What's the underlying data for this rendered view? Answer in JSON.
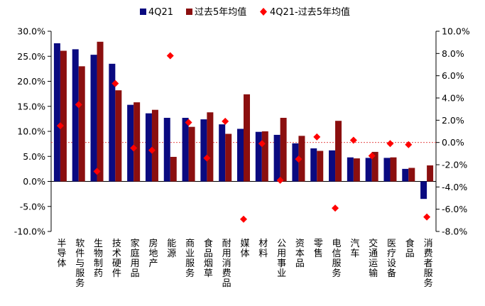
{
  "chart_data": {
    "type": "bar",
    "title": "",
    "xlabel": "",
    "ylabel": "",
    "y_left_range": [
      -10,
      30
    ],
    "y_left_ticks": [
      "-10.0%",
      "-5.0%",
      "0.0%",
      "5.0%",
      "10.0%",
      "15.0%",
      "20.0%",
      "25.0%",
      "30.0%"
    ],
    "y_right_range": [
      -8,
      10
    ],
    "y_right_ticks": [
      "-8.0%",
      "-6.0%",
      "-4.0%",
      "-2.0%",
      "0.0%",
      "2.0%",
      "4.0%",
      "6.0%",
      "8.0%",
      "10.0%"
    ],
    "legend_position": "top",
    "grid": false,
    "categories": [
      "半导体",
      "软件与服务",
      "生物制药",
      "技术硬件",
      "家庭用品",
      "房地产",
      "能源",
      "商业服务",
      "食品烟草",
      "耐用消费品",
      "媒体",
      "材料",
      "公用事业",
      "资本品",
      "零售",
      "电信服务",
      "汽车",
      "交通运输",
      "医疗设备",
      "食品",
      "消费者服务"
    ],
    "series": [
      {
        "name": "4Q21",
        "kind": "bar",
        "axis": "left",
        "color": "#0a0a80",
        "values": [
          27.6,
          26.4,
          25.3,
          23.5,
          15.3,
          13.6,
          12.7,
          12.7,
          12.4,
          11.4,
          10.5,
          9.9,
          9.3,
          7.6,
          6.6,
          6.2,
          4.8,
          4.7,
          4.7,
          2.5,
          -3.5
        ]
      },
      {
        "name": "过去5年均值",
        "kind": "bar",
        "axis": "left",
        "color": "#8b0f0f",
        "values": [
          26.1,
          23.0,
          27.9,
          18.2,
          15.8,
          14.3,
          4.9,
          10.9,
          13.8,
          9.5,
          17.4,
          10.0,
          12.7,
          9.1,
          6.1,
          12.1,
          4.6,
          5.9,
          4.8,
          2.7,
          3.2
        ]
      },
      {
        "name": "4Q21-过去5年均值",
        "kind": "scatter",
        "axis": "right",
        "color": "#ff0000",
        "values": [
          1.5,
          3.4,
          -2.6,
          5.3,
          -0.5,
          -0.7,
          7.8,
          1.8,
          -1.4,
          1.9,
          -6.9,
          -0.1,
          -3.4,
          -1.5,
          0.5,
          -5.9,
          0.2,
          -1.2,
          -0.1,
          -0.2,
          -6.7
        ]
      }
    ]
  }
}
